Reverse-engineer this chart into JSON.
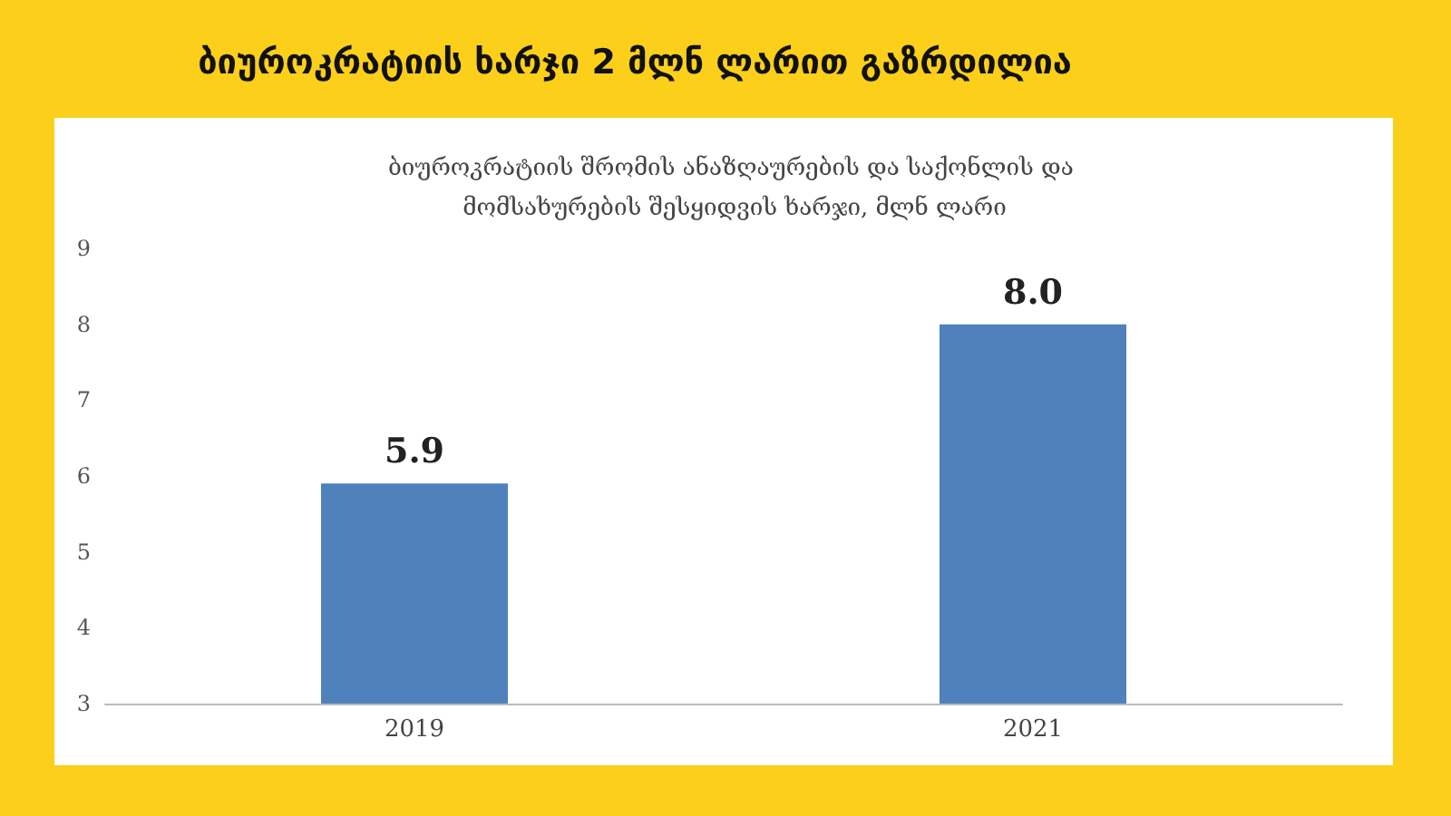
{
  "chart_data": {
    "type": "bar",
    "title": "ბიუროკრატიის ხარჯი 2 მლნ ლარით გაზრდილია",
    "subtitle": "ბიუროკრატიის შრომის ანაზღაურების და საქონლის და მომსახურების შესყიდვის ხარჯი, მლნ ლარი",
    "categories": [
      "2019",
      "2021"
    ],
    "values": [
      5.9,
      8.0
    ],
    "value_labels": [
      "5.9",
      "8.0"
    ],
    "color": "#4f81bd",
    "ylim": [
      3,
      9
    ],
    "yticks": [
      3,
      4,
      5,
      6,
      7,
      8,
      9
    ],
    "grid": false
  }
}
